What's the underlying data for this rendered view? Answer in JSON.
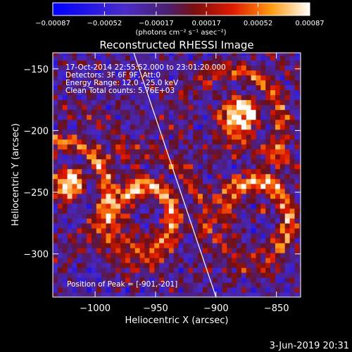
{
  "chart_data": {
    "type": "heatmap",
    "title": "Reconstructed RHESSI Image",
    "xlabel": "Heliocentric X (arcsec)",
    "ylabel": "Heliocentric Y (arcsec)",
    "xlim": [
      -1035,
      -830
    ],
    "ylim": [
      -335,
      -137
    ],
    "x_ticks": [
      -1000,
      -950,
      -900,
      -850
    ],
    "x_tick_labels": [
      "−1000",
      "−950",
      "−900",
      "−850"
    ],
    "y_ticks": [
      -150,
      -200,
      -250,
      -300
    ],
    "y_tick_labels": [
      "−150",
      "−200",
      "−250",
      "−300"
    ],
    "colorbar": {
      "min": -0.00087,
      "max": 0.00087,
      "ticks": [
        -0.00087,
        -0.00052,
        -0.00017,
        0.00017,
        0.00052,
        0.00087
      ],
      "tick_labels": [
        "−0.00087",
        "−0.00052",
        "−0.00017",
        "0.00017",
        "0.00052",
        "0.00087"
      ],
      "unit_label": "(photons cm⁻² s⁻¹ asec⁻²)",
      "colormap": "blue-purple-red-orange-yellow-white"
    },
    "annotations": [
      "17-Oct-2014 22:55:52.000 to 23:01:20.000",
      "Detectors: 3F 6F 9F, Att:0",
      "Energy Range: 12.0 - 25.0 keV",
      "Clean     Total counts: 5.76E+03"
    ],
    "peak_label": "Position of Peak = [-901,-201]",
    "limb_line": {
      "points": [
        [
          -968,
          -137
        ],
        [
          -900,
          -335
        ]
      ]
    },
    "bright_regions": [
      {
        "name": "left",
        "x": -1020,
        "y": -240,
        "intensity": 0.00087
      },
      {
        "name": "center",
        "x": -955,
        "y": -265,
        "intensity": 0.00087
      },
      {
        "name": "right-upper",
        "x": -878,
        "y": -185,
        "intensity": 0.00087
      },
      {
        "name": "right-lower",
        "x": -862,
        "y": -265,
        "intensity": 0.00087
      }
    ]
  },
  "footer": {
    "date": "3-Jun-2019 20:31"
  },
  "colors": {
    "background": "#000000",
    "foreground": "#ffffff",
    "limb": "#ffffff"
  }
}
